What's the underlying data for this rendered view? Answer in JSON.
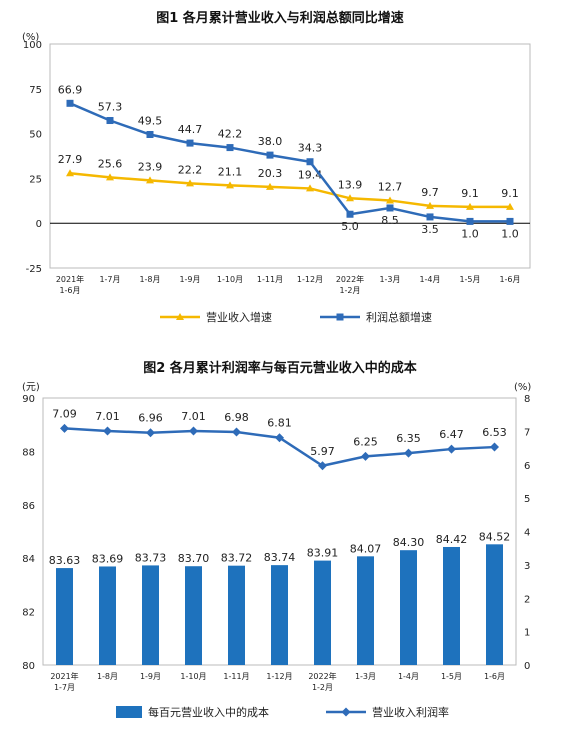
{
  "chart_data": [
    {
      "type": "line",
      "title": "图1  各月累计营业收入与利润总额同比增速",
      "unit": "(%)",
      "categories": [
        "2021年\n1-6月",
        "1-7月",
        "1-8月",
        "1-9月",
        "1-10月",
        "1-11月",
        "1-12月",
        "2022年\n1-2月",
        "1-3月",
        "1-4月",
        "1-5月",
        "1-6月"
      ],
      "ylim": [
        -25,
        100
      ],
      "yticks": [
        "100",
        "75",
        "50",
        "25",
        "0",
        "-25"
      ],
      "series": [
        {
          "name": "营业收入增速",
          "color": "#f5b800",
          "marker": "triangle",
          "values": [
            27.9,
            25.6,
            23.9,
            22.2,
            21.1,
            20.3,
            19.4,
            13.9,
            12.7,
            9.7,
            9.1,
            9.1
          ],
          "labels": [
            "27.9",
            "25.6",
            "23.9",
            "22.2",
            "21.1",
            "20.3",
            "19.4",
            "13.9",
            "12.7",
            "9.7",
            "9.1",
            "9.1"
          ]
        },
        {
          "name": "利润总额增速",
          "color": "#2e6bb8",
          "marker": "square",
          "values": [
            66.9,
            57.3,
            49.5,
            44.7,
            42.2,
            38.0,
            34.3,
            5.0,
            8.5,
            3.5,
            1.0,
            1.0
          ],
          "labels": [
            "66.9",
            "57.3",
            "49.5",
            "44.7",
            "42.2",
            "38.0",
            "34.3",
            "5.0",
            "8.5",
            "3.5",
            "1.0",
            "1.0"
          ]
        }
      ],
      "legend": "bottom"
    },
    {
      "type": "bar+line",
      "title": "图2  各月累计利润率与每百元营业收入中的成本",
      "left_unit": "(元)",
      "right_unit": "(%)",
      "categories": [
        "2021年\n1-7月",
        "1-8月",
        "1-9月",
        "1-10月",
        "1-11月",
        "1-12月",
        "2022年\n1-2月",
        "1-3月",
        "1-4月",
        "1-5月",
        "1-6月"
      ],
      "left_ylim": [
        80,
        90
      ],
      "left_yticks": [
        "90",
        "88",
        "86",
        "84",
        "82",
        "80"
      ],
      "right_ylim": [
        0,
        8
      ],
      "right_yticks": [
        "8",
        "7",
        "6",
        "5",
        "4",
        "3",
        "2",
        "1",
        "0"
      ],
      "bars": {
        "name": "每百元营业收入中的成本",
        "color": "#1e72bd",
        "values": [
          83.63,
          83.69,
          83.73,
          83.7,
          83.72,
          83.74,
          83.91,
          84.07,
          84.3,
          84.42,
          84.52
        ],
        "labels": [
          "83.63",
          "83.69",
          "83.73",
          "83.70",
          "83.72",
          "83.74",
          "83.91",
          "84.07",
          "84.30",
          "84.42",
          "84.52"
        ]
      },
      "line": {
        "name": "营业收入利润率",
        "color": "#2e6bb8",
        "values": [
          7.09,
          7.01,
          6.96,
          7.01,
          6.98,
          6.81,
          5.97,
          6.25,
          6.35,
          6.47,
          6.53
        ],
        "labels": [
          "7.09",
          "7.01",
          "6.96",
          "7.01",
          "6.98",
          "6.81",
          "5.97",
          "6.25",
          "6.35",
          "6.47",
          "6.53"
        ]
      },
      "legend": "bottom"
    }
  ]
}
